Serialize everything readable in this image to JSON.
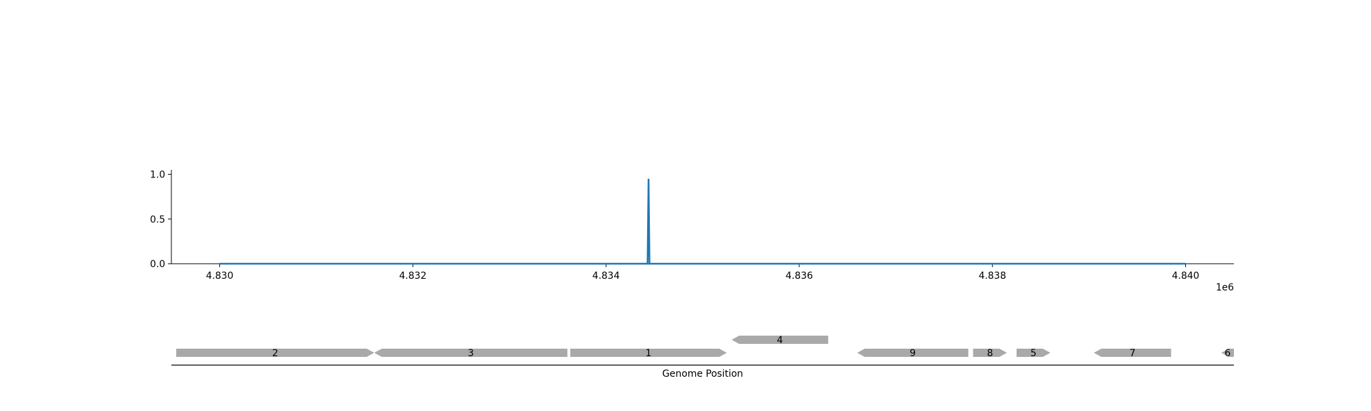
{
  "chart_data": {
    "type": "line",
    "x": [
      4830000,
      4834430,
      4834440,
      4834450,
      4840000
    ],
    "values": [
      0.0,
      0.0,
      0.95,
      0.0,
      0.0
    ],
    "xlim": [
      4829500,
      4840500
    ],
    "ylim": [
      0.0,
      1.05
    ],
    "x_ticks": [
      4830000,
      4832000,
      4834000,
      4836000,
      4838000,
      4840000
    ],
    "x_tick_labels": [
      "4.830",
      "4.832",
      "4.834",
      "4.836",
      "4.838",
      "4.840"
    ],
    "x_offset_label": "1e6",
    "y_ticks": [
      0.0,
      0.5,
      1.0
    ],
    "y_tick_labels": [
      "0.0",
      "0.5",
      "1.0"
    ],
    "xlabel": "Genome Position",
    "grid": false,
    "colors": {
      "signal": "#1f77b4",
      "gene": "#a9a9a9",
      "axis": "#000000"
    },
    "genes": [
      {
        "label": "2",
        "start": 4829550,
        "end": 4831600,
        "strand": "+",
        "row": 0
      },
      {
        "label": "3",
        "start": 4831600,
        "end": 4833600,
        "strand": "-",
        "row": 0
      },
      {
        "label": "1",
        "start": 4833630,
        "end": 4835250,
        "strand": "+",
        "row": 0
      },
      {
        "label": "4",
        "start": 4835300,
        "end": 4836300,
        "strand": "-",
        "row": 1
      },
      {
        "label": "9",
        "start": 4836600,
        "end": 4837750,
        "strand": "-",
        "row": 0
      },
      {
        "label": "8",
        "start": 4837800,
        "end": 4838150,
        "strand": "+",
        "row": 0
      },
      {
        "label": "5",
        "start": 4838250,
        "end": 4838600,
        "strand": "+",
        "row": 0
      },
      {
        "label": "7",
        "start": 4839050,
        "end": 4839850,
        "strand": "-",
        "row": 0
      },
      {
        "label": "6",
        "start": 4840370,
        "end": 4840500,
        "strand": "-",
        "row": 0
      }
    ]
  }
}
